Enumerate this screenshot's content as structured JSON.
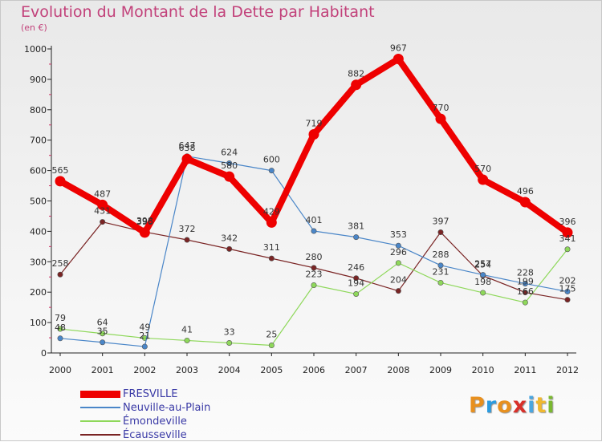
{
  "header": {
    "title": "Evolution du Montant de la Dette par Habitant",
    "subtitle": "(en €)"
  },
  "logo": {
    "letters": [
      "P",
      "r",
      "o",
      "x",
      "i",
      "t",
      "i"
    ],
    "colors": [
      "#e8901e",
      "#2b9be0",
      "#e8901e",
      "#d8302a",
      "#4aa6e0",
      "#f0b830",
      "#7ab830"
    ]
  },
  "chart_data": {
    "type": "line",
    "title": "Evolution du Montant de la Dette par Habitant",
    "ylabel": "(en €)",
    "xlabel": "",
    "x": [
      "2000",
      "2001",
      "2002",
      "2003",
      "2004",
      "2005",
      "2006",
      "2007",
      "2008",
      "2009",
      "2010",
      "2011",
      "2012"
    ],
    "ylim": [
      0,
      1000
    ],
    "yticks": [
      "0",
      "100",
      "200",
      "300",
      "400",
      "500",
      "600",
      "700",
      "800",
      "900",
      "1000"
    ],
    "grid": false,
    "legend_position": "bottom-left",
    "series": [
      {
        "name": "FRESVILLE",
        "color": "#ee0000",
        "emphasis": "thick",
        "values": [
          565,
          487,
          396,
          638,
          580,
          429,
          719,
          882,
          967,
          770,
          570,
          496,
          396
        ],
        "labels": [
          "565",
          "487",
          "396",
          "638",
          "580",
          "429",
          "719",
          "882",
          "967",
          "770",
          "570",
          "496",
          "396"
        ]
      },
      {
        "name": "Neuville-au-Plain",
        "color": "#4a86c8",
        "emphasis": "thin",
        "values": [
          48,
          35,
          21,
          647,
          624,
          600,
          401,
          381,
          353,
          288,
          257,
          228,
          202
        ],
        "labels": [
          "48",
          "35",
          "21",
          "647",
          "624",
          "600",
          "401",
          "381",
          "353",
          "288",
          "257",
          "228",
          "202"
        ]
      },
      {
        "name": "Émondeville",
        "color": "#8ed85a",
        "emphasis": "thin",
        "values": [
          79,
          64,
          49,
          41,
          33,
          25,
          223,
          194,
          296,
          231,
          198,
          166,
          341
        ],
        "labels": [
          "79",
          "64",
          "49",
          "41",
          "33",
          "25",
          "223",
          "194",
          "296",
          "231",
          "198",
          "166",
          "341"
        ]
      },
      {
        "name": "Écausseville",
        "color": "#7a2424",
        "emphasis": "thin",
        "values": [
          258,
          431,
          398,
          372,
          342,
          311,
          280,
          246,
          204,
          397,
          254,
          199,
          175
        ],
        "labels": [
          "258",
          "431",
          "398",
          "372",
          "342",
          "311",
          "280",
          "246",
          "204",
          "397",
          "254",
          "199",
          "175"
        ]
      }
    ]
  }
}
